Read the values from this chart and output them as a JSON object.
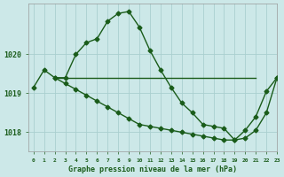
{
  "title": "Graphe pression niveau de la mer (hPa)",
  "bg_color": "#cce8e8",
  "grid_color": "#aacfcf",
  "line_color": "#1a5c1a",
  "xlim": [
    -0.5,
    23
  ],
  "ylim": [
    1017.5,
    1021.3
  ],
  "yticks": [
    1018,
    1019,
    1020
  ],
  "xtick_labels": [
    "0",
    "1",
    "2",
    "3",
    "4",
    "5",
    "6",
    "7",
    "8",
    "9",
    "10",
    "11",
    "12",
    "13",
    "14",
    "15",
    "16",
    "17",
    "18",
    "19",
    "20",
    "21",
    "22",
    "23"
  ],
  "series1_x": [
    0,
    1,
    2,
    3,
    4,
    5,
    6,
    7,
    8,
    9,
    10,
    11,
    12,
    13,
    14,
    15,
    16,
    17,
    18,
    19,
    20,
    21,
    22,
    23
  ],
  "series1_y": [
    1019.15,
    1019.6,
    1019.4,
    1019.4,
    1020.0,
    1020.3,
    1020.4,
    1020.85,
    1021.05,
    1021.1,
    1020.7,
    1020.1,
    1019.6,
    1019.15,
    1018.75,
    1018.5,
    1018.2,
    1018.15,
    1018.1,
    1017.8,
    1018.05,
    1018.4,
    1019.05,
    1019.4
  ],
  "series2_x": [
    2,
    3,
    4,
    5,
    6,
    7,
    8,
    9,
    10,
    11,
    12,
    13,
    14,
    15,
    16,
    17,
    18,
    19,
    20,
    21
  ],
  "series2_y": [
    1019.4,
    1019.4,
    1019.4,
    1019.4,
    1019.4,
    1019.4,
    1019.4,
    1019.4,
    1019.4,
    1019.4,
    1019.4,
    1019.4,
    1019.4,
    1019.4,
    1019.4,
    1019.4,
    1019.4,
    1019.4,
    1019.4,
    1019.4
  ],
  "series3_x": [
    2,
    3,
    4,
    5,
    6,
    7,
    8,
    9,
    10,
    11,
    12,
    13,
    14,
    15,
    16,
    17,
    18,
    19,
    20,
    21,
    22,
    23
  ],
  "series3_y": [
    1019.4,
    1019.25,
    1019.1,
    1018.95,
    1018.8,
    1018.65,
    1018.5,
    1018.35,
    1018.2,
    1018.15,
    1018.1,
    1018.05,
    1018.0,
    1017.95,
    1017.9,
    1017.85,
    1017.8,
    1017.8,
    1017.85,
    1018.05,
    1018.5,
    1019.4
  ],
  "marker": "D",
  "markersize": 2.5,
  "linewidth": 1.0
}
